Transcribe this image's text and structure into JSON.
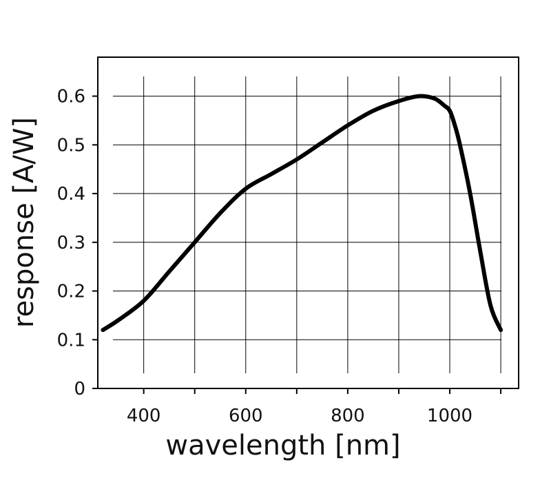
{
  "chart_data": {
    "type": "line",
    "title": "",
    "xlabel": "wavelength [nm]",
    "ylabel": "response [A/W]",
    "xlim": [
      310,
      1135
    ],
    "ylim": [
      0,
      0.68
    ],
    "x_ticks": [
      {
        "value": 400,
        "label": "400"
      },
      {
        "value": 500,
        "label": ""
      },
      {
        "value": 600,
        "label": "600"
      },
      {
        "value": 700,
        "label": ""
      },
      {
        "value": 800,
        "label": "800"
      },
      {
        "value": 900,
        "label": ""
      },
      {
        "value": 1000,
        "label": "1000"
      },
      {
        "value": 1100,
        "label": ""
      }
    ],
    "y_ticks": [
      {
        "value": 0,
        "label": "0"
      },
      {
        "value": 0.1,
        "label": "0.1"
      },
      {
        "value": 0.2,
        "label": "0.2"
      },
      {
        "value": 0.3,
        "label": "0.3"
      },
      {
        "value": 0.4,
        "label": "0.4"
      },
      {
        "value": 0.5,
        "label": "0.5"
      },
      {
        "value": 0.6,
        "label": "0.6"
      }
    ],
    "grid": true,
    "line_color": "#000000",
    "series": [
      {
        "x": [
          320,
          350,
          400,
          450,
          500,
          550,
          600,
          650,
          700,
          750,
          800,
          850,
          900,
          940,
          970,
          990,
          1000,
          1010,
          1020,
          1040,
          1060,
          1080,
          1100
        ],
        "y": [
          0.12,
          0.14,
          0.18,
          0.24,
          0.3,
          0.36,
          0.41,
          0.44,
          0.47,
          0.505,
          0.54,
          0.57,
          0.59,
          0.6,
          0.595,
          0.58,
          0.57,
          0.54,
          0.5,
          0.4,
          0.28,
          0.17,
          0.12
        ]
      }
    ]
  }
}
